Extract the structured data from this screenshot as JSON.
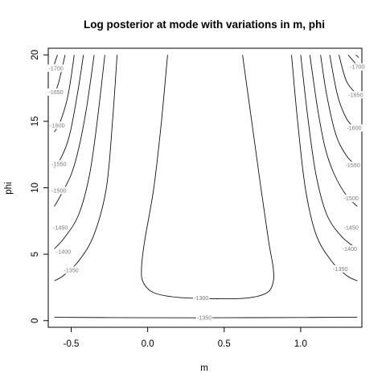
{
  "chart_data": {
    "type": "contour",
    "title": "Log posterior at mode with variations in m, phi",
    "xlabel": "m",
    "ylabel": "phi",
    "xlim": [
      -0.65,
      1.4
    ],
    "ylim": [
      -0.5,
      20.5
    ],
    "xticks": [
      -0.5,
      0.0,
      0.5,
      1.0
    ],
    "xtick_labels": [
      "-0.5",
      "0.0",
      "0.5",
      "1.0"
    ],
    "yticks": [
      0,
      5,
      10,
      15,
      20
    ],
    "yticks_labels": [
      "0",
      "5",
      "10",
      "15",
      "20"
    ],
    "grid": false,
    "contours": [
      {
        "level": -1300,
        "label": "-1300",
        "points": [
          [
            0.13,
            20
          ],
          [
            0.09,
            15
          ],
          [
            0.04,
            10
          ],
          [
            -0.02,
            6
          ],
          [
            -0.04,
            4
          ],
          [
            -0.03,
            2.9
          ],
          [
            0.04,
            2.1
          ],
          [
            0.2,
            1.75
          ],
          [
            0.45,
            1.65
          ],
          [
            0.65,
            1.7
          ],
          [
            0.78,
            2.1
          ],
          [
            0.82,
            2.9
          ],
          [
            0.82,
            4
          ],
          [
            0.79,
            6
          ],
          [
            0.74,
            10
          ],
          [
            0.68,
            15
          ],
          [
            0.62,
            20
          ]
        ],
        "label_at": [
          0.35,
          1.7
        ]
      },
      {
        "level": -1350,
        "label": "-1350",
        "points": [
          [
            -0.61,
            0.25
          ],
          [
            0.0,
            0.22
          ],
          [
            0.5,
            0.22
          ],
          [
            1.0,
            0.24
          ],
          [
            1.37,
            0.26
          ]
        ],
        "label_at": [
          0.37,
          0.22
        ]
      },
      {
        "level": -1350,
        "label": "-1350",
        "points": [
          [
            -0.2,
            20
          ],
          [
            -0.23,
            15
          ],
          [
            -0.27,
            10
          ],
          [
            -0.35,
            6.5
          ],
          [
            -0.45,
            4.5
          ],
          [
            -0.55,
            3.4
          ],
          [
            -0.61,
            3.0
          ]
        ],
        "label_at": [
          -0.5,
          3.8
        ]
      },
      {
        "level": -1350,
        "label": "-1350",
        "points": [
          [
            0.94,
            20
          ],
          [
            0.98,
            15
          ],
          [
            1.03,
            10
          ],
          [
            1.1,
            6.5
          ],
          [
            1.2,
            4.5
          ],
          [
            1.3,
            3.4
          ],
          [
            1.37,
            3.0
          ]
        ],
        "label_at": [
          1.26,
          3.9
        ]
      },
      {
        "level": -1400,
        "label": "-1400",
        "points": [
          [
            -0.28,
            20
          ],
          [
            -0.33,
            15
          ],
          [
            -0.38,
            11
          ],
          [
            -0.45,
            8
          ],
          [
            -0.54,
            6.3
          ],
          [
            -0.61,
            5.4
          ]
        ],
        "label_at": [
          -0.55,
          5.2
        ]
      },
      {
        "level": -1400,
        "label": "-1400",
        "points": [
          [
            1.0,
            20
          ],
          [
            1.05,
            15
          ],
          [
            1.1,
            11
          ],
          [
            1.17,
            8
          ],
          [
            1.27,
            6.3
          ],
          [
            1.37,
            5.4
          ]
        ],
        "label_at": [
          1.32,
          5.4
        ]
      },
      {
        "level": -1450,
        "label": "-1450",
        "points": [
          [
            -0.35,
            20
          ],
          [
            -0.4,
            16
          ],
          [
            -0.45,
            13
          ],
          [
            -0.5,
            11
          ],
          [
            -0.57,
            9.4
          ],
          [
            -0.61,
            8.6
          ]
        ],
        "label_at": [
          -0.57,
          7.0
        ]
      },
      {
        "level": -1450,
        "label": "-1450",
        "points": [
          [
            1.06,
            20
          ],
          [
            1.11,
            16
          ],
          [
            1.16,
            13
          ],
          [
            1.22,
            11
          ],
          [
            1.3,
            9.4
          ],
          [
            1.37,
            8.6
          ]
        ],
        "label_at": [
          1.33,
          7.0
        ]
      },
      {
        "level": -1500,
        "label": "-1500",
        "points": [
          [
            -0.42,
            20
          ],
          [
            -0.46,
            17
          ],
          [
            -0.51,
            14
          ],
          [
            -0.56,
            12.4
          ],
          [
            -0.61,
            11.5
          ]
        ],
        "label_at": [
          -0.58,
          9.8
        ]
      },
      {
        "level": -1500,
        "label": "-1500",
        "points": [
          [
            1.13,
            20
          ],
          [
            1.17,
            17
          ],
          [
            1.23,
            14
          ],
          [
            1.3,
            12.4
          ],
          [
            1.37,
            11.6
          ]
        ],
        "label_at": [
          1.33,
          9.2
        ]
      },
      {
        "level": -1550,
        "label": "-1550",
        "points": [
          [
            -0.48,
            20
          ],
          [
            -0.52,
            17
          ],
          [
            -0.57,
            15
          ],
          [
            -0.61,
            14.2
          ]
        ],
        "label_at": [
          -0.58,
          11.8
        ]
      },
      {
        "level": -1550,
        "label": "-1550",
        "points": [
          [
            1.19,
            20
          ],
          [
            1.24,
            17
          ],
          [
            1.3,
            15.2
          ],
          [
            1.37,
            14.3
          ]
        ],
        "label_at": [
          1.34,
          11.7
        ]
      },
      {
        "level": -1600,
        "label": "-1600",
        "points": [
          [
            -0.54,
            20
          ],
          [
            -0.58,
            18
          ],
          [
            -0.61,
            17
          ]
        ],
        "label_at": [
          -0.59,
          14.7
        ]
      },
      {
        "level": -1600,
        "label": "-1600",
        "points": [
          [
            1.25,
            20
          ],
          [
            1.3,
            18
          ],
          [
            1.37,
            17
          ]
        ],
        "label_at": [
          1.35,
          14.5
        ]
      },
      {
        "level": -1650,
        "label": "-1650",
        "points": [
          [
            -0.59,
            20
          ],
          [
            -0.61,
            19.3
          ]
        ],
        "label_at": [
          -0.6,
          17.2
        ]
      },
      {
        "level": -1650,
        "label": "-1650",
        "points": [
          [
            1.31,
            20
          ],
          [
            1.37,
            19.2
          ]
        ],
        "label_at": [
          1.36,
          17.0
        ]
      },
      {
        "level": -1700,
        "label": "-1700",
        "points": [],
        "label_at": [
          -0.6,
          19.0
        ]
      },
      {
        "level": -1700,
        "label": "-1700",
        "points": [
          [
            1.36,
            20
          ],
          [
            1.38,
            19.8
          ]
        ],
        "label_at": [
          1.37,
          19.1
        ]
      }
    ]
  }
}
